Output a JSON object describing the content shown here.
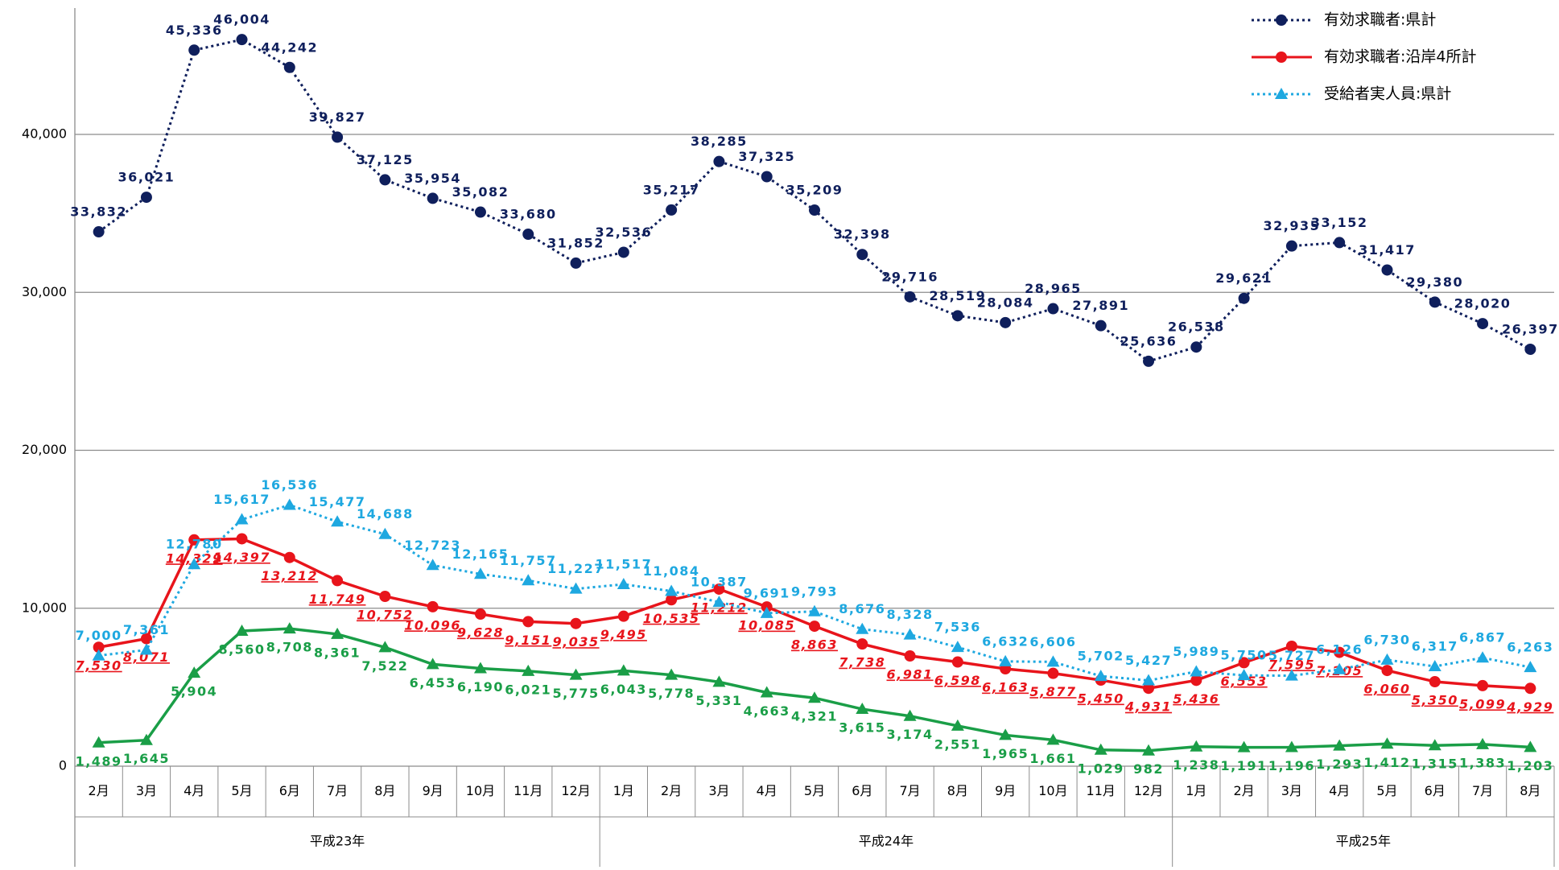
{
  "chart_data": {
    "type": "line",
    "groups": [
      {
        "label": "平成23年",
        "categories": [
          "2月",
          "3月",
          "4月",
          "5月",
          "6月",
          "7月",
          "8月",
          "9月",
          "10月",
          "11月",
          "12月"
        ]
      },
      {
        "label": "平成24年",
        "categories": [
          "1月",
          "2月",
          "3月",
          "4月",
          "5月",
          "6月",
          "7月",
          "8月",
          "9月",
          "10月",
          "11月",
          "12月"
        ]
      },
      {
        "label": "平成25年",
        "categories": [
          "1月",
          "2月",
          "3月",
          "4月",
          "5月",
          "6月",
          "7月",
          "8月"
        ]
      }
    ],
    "ylim": [
      0,
      48000
    ],
    "yticks": [
      0,
      {
        "value": 10000,
        "label": "10,000"
      },
      {
        "value": 20000,
        "label": "20,000"
      },
      {
        "value": 30000,
        "label": "30,000"
      },
      {
        "value": 40000,
        "label": "40,000"
      }
    ],
    "grid": true,
    "legend": "top-right",
    "series": [
      {
        "name": "有効求職者:県計",
        "color": "#0f1f5c",
        "line": "dotted",
        "marker": "circle",
        "values": [
          33832,
          36021,
          45336,
          46004,
          44242,
          39827,
          37125,
          35954,
          35082,
          33680,
          31852,
          32536,
          35217,
          38285,
          37325,
          35209,
          32398,
          29716,
          28519,
          28084,
          28965,
          27891,
          25636,
          26538,
          29621,
          32935,
          33152,
          31417,
          29380,
          28020,
          26397
        ],
        "value_labels": [
          "33,832",
          "36,021",
          "45,336",
          "46,004",
          "44,242",
          "39,827",
          "37,125",
          "35,954",
          "35,082",
          "33,680",
          "31,852",
          "32,536",
          "35,217",
          "38,285",
          "37,325",
          "35,209",
          "32,398",
          "29,716",
          "28,519",
          "28,084",
          "28,965",
          "27,891",
          "25,636",
          "26,538",
          "29,621",
          "32,935",
          "33,152",
          "31,417",
          "29,380",
          "28,020",
          "26,397"
        ]
      },
      {
        "name": "有効求職者:沿岸4所計",
        "color": "#e8141b",
        "line": "solid",
        "marker": "circle",
        "values": [
          7530,
          8071,
          14329,
          14397,
          13212,
          11749,
          10752,
          10096,
          9628,
          9151,
          9035,
          9495,
          10535,
          11212,
          10085,
          8863,
          7738,
          6981,
          6598,
          6163,
          5877,
          5450,
          4931,
          5436,
          6553,
          7595,
          7205,
          6060,
          5350,
          5099,
          4929
        ],
        "value_labels": [
          "7,530",
          "8,071",
          "14,329",
          "14,397",
          "13,212",
          "11,749",
          "10,752",
          "10,096",
          "9,628",
          "9,151",
          "9,035",
          "9,495",
          "10,535",
          "11,212",
          "10,085",
          "8,863",
          "7,738",
          "6,981",
          "6,598",
          "6,163",
          "5,877",
          "5,450",
          "4,931",
          "5,436",
          "6,553",
          "7,595",
          "7,205",
          "6,060",
          "5,350",
          "5,099",
          "4,929"
        ]
      },
      {
        "name": "受給者実人員:県計",
        "color": "#1ea8e0",
        "line": "dotted",
        "marker": "triangle",
        "values": [
          7000,
          7361,
          12780,
          15617,
          16536,
          15477,
          14688,
          12723,
          12165,
          11757,
          11227,
          11517,
          11084,
          10387,
          9691,
          9793,
          8676,
          8328,
          7536,
          6632,
          6606,
          5702,
          5427,
          5989,
          5750,
          5727,
          6126,
          6730,
          6317,
          6867,
          6263
        ],
        "value_labels": [
          "7,000",
          "7,361",
          "12,780",
          "15,617",
          "16,536",
          "15,477",
          "14,688",
          "12,723",
          "12,165",
          "11,757",
          "11,227",
          "11,517",
          "11,084",
          "10,387",
          "9,691",
          "9,793",
          "8,676",
          "8,328",
          "7,536",
          "6,632",
          "6,606",
          "5,702",
          "5,427",
          "5,989",
          "5,750",
          "5,727",
          "6,126",
          "6,730",
          "6,317",
          "6,867",
          "6,263"
        ]
      },
      {
        "color": "#1a9e47",
        "line": "solid",
        "marker": "triangle",
        "values": [
          1489,
          1645,
          5904,
          8560,
          8708,
          8361,
          7522,
          6453,
          6190,
          6021,
          5775,
          6043,
          5778,
          5331,
          4663,
          4321,
          3615,
          3174,
          2551,
          1965,
          1661,
          1029,
          982,
          1238,
          1191,
          1196,
          1293,
          1412,
          1315,
          1383,
          1203
        ],
        "value_labels": [
          "1,489",
          "1,645",
          "5,904",
          "8,560",
          "8,708",
          "8,361",
          "7,522",
          "6,453",
          "6,190",
          "6,021",
          "5,775",
          "6,043",
          "5,778",
          "5,331",
          "4,663",
          "4,321",
          "3,615",
          "3,174",
          "2,551",
          "1,965",
          "1,661",
          "1,029",
          "982",
          "1,238",
          "1,191",
          "1,196",
          "1,293",
          "1,412",
          "1,315",
          "1,383",
          "1,203"
        ]
      }
    ]
  }
}
